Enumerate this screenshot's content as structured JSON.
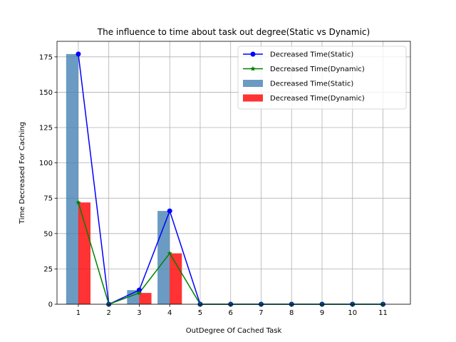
{
  "chart_data": {
    "type": "bar",
    "title": "The influence to time about task out degree(Static vs Dynamic)",
    "xlabel": "OutDegree Of Cached Task",
    "ylabel": "Time Decreased For Caching",
    "x": [
      1,
      2,
      3,
      4,
      5,
      6,
      7,
      8,
      9,
      10,
      11
    ],
    "x_tick_labels": [
      "1",
      "2",
      "3",
      "4",
      "5",
      "6",
      "7",
      "8",
      "9",
      "10",
      "11"
    ],
    "xlim": [
      0.3,
      11.9
    ],
    "ylim": [
      0,
      186
    ],
    "y_ticks": [
      0,
      25,
      50,
      75,
      100,
      125,
      150,
      175
    ],
    "y_tick_labels": [
      "0",
      "25",
      "50",
      "75",
      "100",
      "125",
      "150",
      "175"
    ],
    "grid": true,
    "legend_position": "top-right",
    "series": [
      {
        "name": "Decreased Time(Static)",
        "kind": "line",
        "marker": "circle",
        "color": "#0000ff",
        "values": [
          177,
          0,
          10,
          66,
          0,
          0,
          0,
          0,
          0,
          0,
          0
        ]
      },
      {
        "name": "Decreased Time(Dynamic)",
        "kind": "line",
        "marker": "star",
        "color": "#008000",
        "values": [
          72,
          0,
          8,
          36,
          0,
          0,
          0,
          0,
          0,
          0,
          0
        ]
      },
      {
        "name": "Decreased Time(Static)",
        "kind": "bar",
        "color": "#4682b4",
        "opacity": 0.8,
        "offset": -0.2,
        "values": [
          177,
          0,
          10,
          66,
          0,
          0,
          0,
          0,
          0,
          0,
          0
        ]
      },
      {
        "name": "Decreased Time(Dynamic)",
        "kind": "bar",
        "color": "#ff0000",
        "opacity": 0.8,
        "offset": 0.2,
        "values": [
          72,
          0,
          8,
          36,
          0,
          0,
          0,
          0,
          0,
          0,
          0
        ]
      }
    ]
  }
}
